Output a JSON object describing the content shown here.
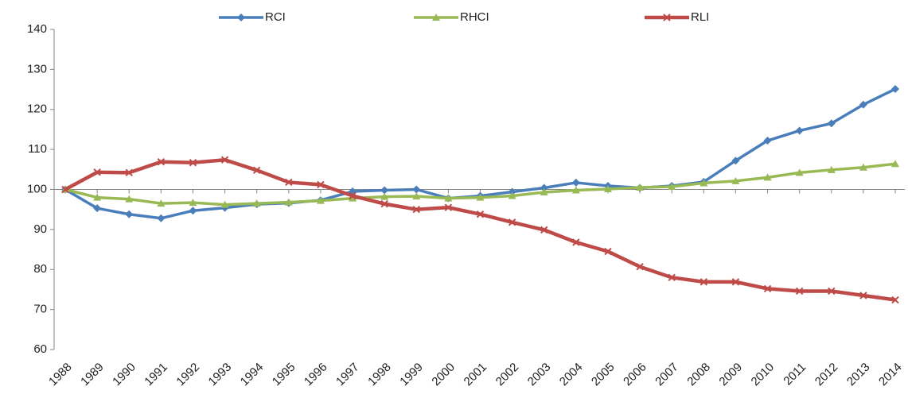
{
  "chart_data": {
    "type": "line",
    "categories": [
      "1988",
      "1989",
      "1990",
      "1991",
      "1992",
      "1993",
      "1994",
      "1995",
      "1996",
      "1997",
      "1998",
      "1999",
      "2000",
      "2001",
      "2002",
      "2003",
      "2004",
      "2005",
      "2006",
      "2007",
      "2008",
      "2009",
      "2010",
      "2011",
      "2012",
      "2013",
      "2014"
    ],
    "series": [
      {
        "name": "RCI",
        "color": "#4a7ebb",
        "marker": "diamond",
        "values": [
          100,
          95.3,
          93.8,
          92.8,
          94.7,
          95.4,
          96.3,
          96.6,
          97.3,
          99.5,
          99.8,
          100,
          97.8,
          98.4,
          99.4,
          100.4,
          101.7,
          100.9,
          100.4,
          100.9,
          101.9,
          107.2,
          112.2,
          114.7,
          116.5,
          121.2,
          125.1
        ]
      },
      {
        "name": "RHCI",
        "color": "#98b954",
        "marker": "triangle",
        "values": [
          100,
          98,
          97.6,
          96.5,
          96.7,
          96.2,
          96.5,
          96.8,
          97.2,
          97.8,
          98.2,
          98.3,
          97.8,
          98,
          98.4,
          99.3,
          99.8,
          100.1,
          100.5,
          100.7,
          101.6,
          102.1,
          103,
          104.2,
          104.9,
          105.5,
          106.4
        ]
      },
      {
        "name": "RLI",
        "color": "#be4b48",
        "marker": "cross",
        "values": [
          100,
          104.3,
          104.2,
          106.9,
          106.7,
          107.4,
          104.8,
          101.8,
          101.2,
          98.4,
          96.4,
          95,
          95.5,
          93.8,
          91.8,
          89.9,
          86.8,
          84.5,
          80.7,
          78,
          76.9,
          76.9,
          75.2,
          74.6,
          74.6,
          73.5,
          72.4
        ]
      }
    ],
    "ylim": [
      60,
      140
    ],
    "yticks": [
      60,
      70,
      80,
      90,
      100,
      110,
      120,
      130,
      140
    ],
    "x_axis_crosses_at": 100,
    "grid": false,
    "legend": "top"
  }
}
